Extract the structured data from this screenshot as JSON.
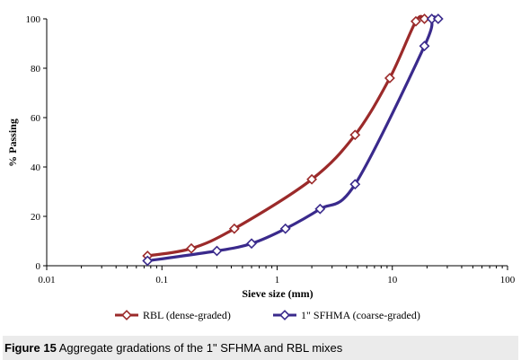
{
  "chart_data": {
    "type": "line",
    "title": "",
    "xlabel": "Sieve size (mm)",
    "ylabel": "% Passing",
    "xscale": "log",
    "xlim": [
      0.01,
      100
    ],
    "ylim": [
      0,
      100
    ],
    "x_ticks": [
      "0.01",
      "0.1",
      "1",
      "10",
      "100"
    ],
    "y_ticks": [
      "0",
      "20",
      "40",
      "60",
      "80",
      "100"
    ],
    "grid": "none",
    "legend_position": "bottom",
    "series": [
      {
        "name": "RBL (dense-graded)",
        "color": "#9b2a2a",
        "marker": "diamond",
        "x": [
          0.075,
          0.18,
          0.425,
          2.0,
          4.75,
          9.5,
          16.0,
          19.0
        ],
        "y": [
          4,
          7,
          15,
          35,
          53,
          76,
          99,
          100
        ]
      },
      {
        "name": "1\" SFHMA (coarse-graded)",
        "color": "#3a2a8c",
        "marker": "diamond",
        "x": [
          0.075,
          0.3,
          0.6,
          1.18,
          2.36,
          4.75,
          19.0,
          22.0,
          25.0
        ],
        "y": [
          2,
          6,
          9,
          15,
          23,
          33,
          89,
          100,
          100
        ]
      }
    ]
  },
  "caption": {
    "label": "Figure 15",
    "text": " Aggregate gradations of the 1\" SFHMA and RBL mixes"
  }
}
